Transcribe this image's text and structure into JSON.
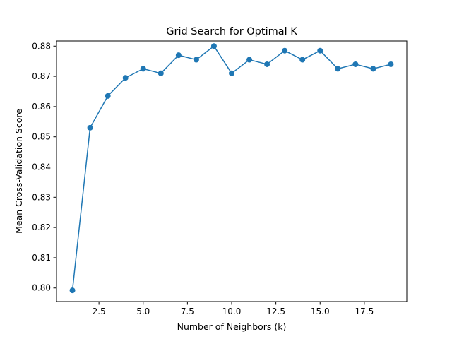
{
  "chart_data": {
    "type": "line",
    "title": "Grid Search for Optimal K",
    "xlabel": "Number of Neighbors (k)",
    "ylabel": "Mean Cross-Validation Score",
    "xlim": [
      0.1,
      19.9
    ],
    "ylim": [
      0.7955,
      0.8817
    ],
    "xticks": [
      2.5,
      5.0,
      7.5,
      10.0,
      12.5,
      15.0,
      17.5
    ],
    "xtick_labels": [
      "2.5",
      "5.0",
      "7.5",
      "10.0",
      "12.5",
      "15.0",
      "17.5"
    ],
    "yticks": [
      0.8,
      0.81,
      0.82,
      0.83,
      0.84,
      0.85,
      0.86,
      0.87,
      0.88
    ],
    "ytick_labels": [
      "0.80",
      "0.81",
      "0.82",
      "0.83",
      "0.84",
      "0.85",
      "0.86",
      "0.87",
      "0.88"
    ],
    "grid": false,
    "marker": "circle",
    "color": "#1f77b4",
    "series": [
      {
        "x": [
          1,
          2,
          3,
          4,
          5,
          6,
          7,
          8,
          9,
          10,
          11,
          12,
          13,
          14,
          15,
          16,
          17,
          18,
          19
        ],
        "values": [
          0.7992,
          0.853,
          0.8635,
          0.8695,
          0.8725,
          0.871,
          0.877,
          0.8755,
          0.88,
          0.871,
          0.8755,
          0.874,
          0.8785,
          0.8755,
          0.8785,
          0.8725,
          0.874,
          0.8725,
          0.874
        ]
      }
    ]
  }
}
